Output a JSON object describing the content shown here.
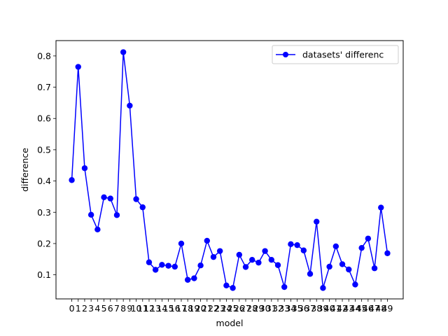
{
  "chart_data": {
    "type": "line",
    "xlabel": "model",
    "ylabel": "difference",
    "x": [
      0,
      1,
      2,
      3,
      4,
      5,
      6,
      7,
      8,
      9,
      10,
      11,
      12,
      13,
      14,
      15,
      16,
      17,
      18,
      19,
      20,
      21,
      22,
      23,
      24,
      25,
      26,
      27,
      28,
      29,
      30,
      31,
      32,
      33,
      34,
      35,
      36,
      37,
      38,
      39,
      40,
      41,
      42,
      43,
      44,
      45,
      46,
      47,
      48,
      49
    ],
    "x_tick_labels": [
      "0",
      "1",
      "2",
      "3",
      "4",
      "5",
      "6",
      "7",
      "8",
      "9",
      "10",
      "11",
      "12",
      "13",
      "14",
      "15",
      "16",
      "17",
      "18",
      "19",
      "20",
      "21",
      "22",
      "23",
      "24",
      "25",
      "26",
      "27",
      "28",
      "29",
      "30",
      "31",
      "32",
      "33",
      "34",
      "35",
      "36",
      "37",
      "38",
      "39",
      "40",
      "41",
      "42",
      "43",
      "44",
      "45",
      "46",
      "47",
      "48",
      "49"
    ],
    "y_ticks": [
      0.1,
      0.2,
      0.3,
      0.4,
      0.5,
      0.6,
      0.7,
      0.8
    ],
    "y_tick_labels": [
      "0.1",
      "0.2",
      "0.3",
      "0.4",
      "0.5",
      "0.6",
      "0.7",
      "0.8"
    ],
    "xlim": [
      -2.45,
      51.45
    ],
    "ylim": [
      0.023,
      0.849
    ],
    "grid": false,
    "legend_position": "top-right",
    "series": [
      {
        "name": "datasets' differenc",
        "color": "#0000ff",
        "marker": "circle",
        "values": [
          0.403,
          0.765,
          0.441,
          0.292,
          0.245,
          0.348,
          0.344,
          0.291,
          0.812,
          0.641,
          0.342,
          0.316,
          0.14,
          0.116,
          0.132,
          0.129,
          0.126,
          0.2,
          0.084,
          0.089,
          0.13,
          0.209,
          0.157,
          0.176,
          0.066,
          0.058,
          0.164,
          0.125,
          0.148,
          0.139,
          0.176,
          0.148,
          0.131,
          0.061,
          0.198,
          0.195,
          0.178,
          0.103,
          0.27,
          0.058,
          0.126,
          0.191,
          0.134,
          0.117,
          0.069,
          0.186,
          0.216,
          0.121,
          0.315,
          0.169
        ]
      }
    ]
  }
}
